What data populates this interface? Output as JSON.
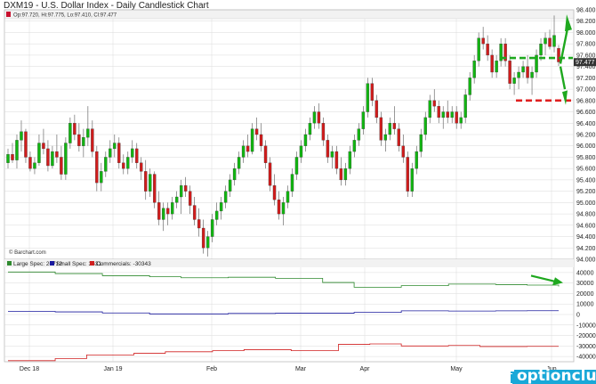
{
  "title": "DXM19 - U.S. Dollar Index - Daily Candlestick Chart",
  "ohlc_info": "Op:97.720, Hi:97.775, Lo:97.410, Cl:97.477",
  "credit": "© Barchart.com",
  "watermark": "optionclue.com",
  "colors": {
    "up": "#11b511",
    "down": "#d01c1c",
    "grid": "#dadada",
    "annotation": "#1ea81e",
    "support": "#e02020",
    "large_spec": "#2f8a2f",
    "small_spec": "#1a1a9e",
    "commercials": "#d02020",
    "watermark_bg": "#1aa8d8"
  },
  "chart_data": [
    {
      "type": "candlestick",
      "title": "DXM19 - U.S. Dollar Index - Daily Candlestick Chart",
      "y_axis_ticks": [
        "94.000",
        "94.200",
        "94.400",
        "94.600",
        "94.800",
        "95.000",
        "95.200",
        "95.400",
        "95.600",
        "95.800",
        "96.000",
        "96.200",
        "96.400",
        "96.600",
        "96.800",
        "97.000",
        "97.200",
        "97.400",
        "97.600",
        "97.800",
        "98.000",
        "98.200",
        "98.400"
      ],
      "ylim": [
        94.0,
        98.4
      ],
      "x_axis_labels": [
        "Dec 18",
        "Jan 19",
        "Feb",
        "Mar",
        "Apr",
        "May",
        "Jun"
      ],
      "last_price_label": "97.477",
      "annotations": [
        {
          "type": "dashed-line",
          "color": "green",
          "y": 97.55,
          "from": "May",
          "to": "Jun"
        },
        {
          "type": "dashed-line",
          "color": "red",
          "y": 96.8,
          "from": "May",
          "to": "Jun"
        },
        {
          "type": "arrow",
          "color": "green",
          "direction": "up"
        },
        {
          "type": "arrow",
          "color": "green",
          "direction": "down"
        }
      ],
      "candles": [
        [
          95.7,
          95.95,
          95.6,
          95.85
        ],
        [
          95.85,
          96.05,
          95.7,
          95.75
        ],
        [
          95.75,
          96.2,
          95.6,
          96.1
        ],
        [
          96.1,
          96.45,
          95.9,
          96.25
        ],
        [
          96.25,
          96.3,
          95.7,
          95.8
        ],
        [
          95.8,
          95.9,
          95.55,
          95.6
        ],
        [
          95.6,
          95.8,
          95.5,
          95.7
        ],
        [
          95.7,
          96.2,
          95.65,
          96.05
        ],
        [
          96.05,
          96.3,
          95.85,
          95.95
        ],
        [
          95.95,
          96.1,
          95.55,
          95.65
        ],
        [
          95.65,
          96.0,
          95.6,
          95.9
        ],
        [
          95.9,
          96.2,
          95.7,
          95.8
        ],
        [
          95.8,
          96.0,
          95.4,
          95.5
        ],
        [
          95.5,
          96.15,
          95.4,
          96.05
        ],
        [
          96.05,
          96.5,
          95.95,
          96.4
        ],
        [
          96.4,
          96.55,
          96.1,
          96.2
        ],
        [
          96.2,
          96.4,
          95.9,
          96.0
        ],
        [
          96.0,
          96.3,
          95.8,
          96.15
        ],
        [
          96.15,
          96.7,
          96.0,
          96.3
        ],
        [
          96.3,
          96.45,
          95.8,
          95.9
        ],
        [
          95.9,
          96.0,
          95.2,
          95.35
        ],
        [
          95.35,
          95.7,
          95.2,
          95.55
        ],
        [
          95.55,
          95.9,
          95.45,
          95.8
        ],
        [
          95.8,
          96.1,
          95.7,
          95.95
        ],
        [
          95.95,
          96.2,
          95.8,
          96.05
        ],
        [
          96.05,
          96.15,
          95.6,
          95.7
        ],
        [
          95.7,
          95.85,
          95.5,
          95.6
        ],
        [
          95.6,
          95.9,
          95.5,
          95.8
        ],
        [
          95.8,
          96.1,
          95.7,
          95.95
        ],
        [
          95.95,
          96.05,
          95.6,
          95.7
        ],
        [
          95.7,
          95.8,
          95.4,
          95.55
        ],
        [
          95.55,
          95.75,
          95.05,
          95.2
        ],
        [
          95.2,
          95.6,
          95.1,
          95.5
        ],
        [
          95.5,
          95.55,
          94.9,
          95.0
        ],
        [
          95.0,
          95.2,
          94.6,
          94.7
        ],
        [
          94.7,
          95.0,
          94.5,
          94.9
        ],
        [
          94.9,
          95.0,
          94.6,
          94.8
        ],
        [
          94.8,
          95.1,
          94.7,
          95.0
        ],
        [
          95.0,
          95.2,
          94.9,
          95.1
        ],
        [
          95.1,
          95.4,
          94.8,
          95.3
        ],
        [
          95.3,
          95.45,
          95.1,
          95.2
        ],
        [
          95.2,
          95.3,
          94.8,
          94.95
        ],
        [
          94.95,
          95.1,
          94.6,
          94.7
        ],
        [
          94.7,
          94.9,
          94.4,
          94.55
        ],
        [
          94.55,
          94.7,
          94.1,
          94.2
        ],
        [
          94.2,
          94.5,
          94.05,
          94.4
        ],
        [
          94.4,
          94.8,
          94.3,
          94.7
        ],
        [
          94.7,
          95.0,
          94.6,
          94.85
        ],
        [
          94.85,
          95.1,
          94.7,
          95.0
        ],
        [
          95.0,
          95.3,
          94.9,
          95.2
        ],
        [
          95.2,
          95.5,
          95.1,
          95.4
        ],
        [
          95.4,
          95.7,
          95.3,
          95.6
        ],
        [
          95.6,
          95.9,
          95.5,
          95.8
        ],
        [
          95.8,
          96.1,
          95.7,
          96.0
        ],
        [
          96.0,
          96.2,
          95.8,
          95.9
        ],
        [
          95.9,
          96.4,
          95.85,
          96.3
        ],
        [
          96.3,
          96.5,
          96.1,
          96.2
        ],
        [
          96.2,
          96.4,
          95.9,
          96.0
        ],
        [
          96.0,
          96.1,
          95.6,
          95.7
        ],
        [
          95.7,
          95.8,
          95.2,
          95.3
        ],
        [
          95.3,
          95.5,
          94.95,
          95.05
        ],
        [
          95.05,
          95.2,
          94.7,
          94.8
        ],
        [
          94.8,
          95.1,
          94.6,
          95.0
        ],
        [
          95.0,
          95.3,
          94.9,
          95.2
        ],
        [
          95.2,
          95.6,
          95.1,
          95.5
        ],
        [
          95.5,
          95.9,
          95.4,
          95.8
        ],
        [
          95.8,
          96.1,
          95.7,
          96.0
        ],
        [
          96.0,
          96.3,
          95.9,
          96.2
        ],
        [
          96.2,
          96.5,
          96.1,
          96.4
        ],
        [
          96.4,
          96.7,
          96.3,
          96.6
        ],
        [
          96.6,
          96.75,
          96.3,
          96.4
        ],
        [
          96.4,
          96.5,
          96.0,
          96.1
        ],
        [
          96.1,
          96.2,
          95.7,
          95.8
        ],
        [
          95.8,
          96.0,
          95.6,
          95.9
        ],
        [
          95.9,
          96.0,
          95.5,
          95.6
        ],
        [
          95.6,
          95.8,
          95.3,
          95.4
        ],
        [
          95.4,
          95.7,
          95.3,
          95.6
        ],
        [
          95.6,
          96.0,
          95.5,
          95.9
        ],
        [
          95.9,
          96.2,
          95.8,
          96.1
        ],
        [
          96.1,
          96.4,
          96.0,
          96.3
        ],
        [
          96.3,
          96.7,
          96.2,
          96.6
        ],
        [
          96.6,
          97.2,
          96.5,
          97.1
        ],
        [
          97.1,
          97.2,
          96.7,
          96.8
        ],
        [
          96.8,
          96.9,
          96.4,
          96.5
        ],
        [
          96.5,
          96.6,
          96.0,
          96.1
        ],
        [
          96.1,
          96.3,
          95.9,
          96.2
        ],
        [
          96.2,
          96.5,
          96.1,
          96.4
        ],
        [
          96.4,
          96.7,
          96.2,
          96.3
        ],
        [
          96.3,
          96.4,
          95.9,
          96.0
        ],
        [
          96.0,
          96.2,
          95.7,
          95.8
        ],
        [
          95.8,
          95.9,
          95.1,
          95.2
        ],
        [
          95.2,
          95.7,
          95.1,
          95.6
        ],
        [
          95.6,
          96.0,
          95.5,
          95.9
        ],
        [
          95.9,
          96.3,
          95.8,
          96.2
        ],
        [
          96.2,
          96.6,
          96.1,
          96.5
        ],
        [
          96.5,
          96.9,
          96.4,
          96.8
        ],
        [
          96.8,
          97.0,
          96.6,
          96.7
        ],
        [
          96.7,
          96.8,
          96.4,
          96.5
        ],
        [
          96.5,
          96.7,
          96.3,
          96.6
        ],
        [
          96.6,
          96.8,
          96.4,
          96.5
        ],
        [
          96.5,
          96.7,
          96.4,
          96.6
        ],
        [
          96.6,
          96.7,
          96.3,
          96.4
        ],
        [
          96.4,
          96.6,
          96.3,
          96.5
        ],
        [
          96.5,
          97.0,
          96.4,
          96.9
        ],
        [
          96.9,
          97.3,
          96.8,
          97.2
        ],
        [
          97.2,
          97.6,
          97.1,
          97.5
        ],
        [
          97.5,
          98.0,
          97.4,
          97.9
        ],
        [
          97.9,
          98.1,
          97.7,
          97.8
        ],
        [
          97.8,
          97.95,
          97.5,
          97.6
        ],
        [
          97.6,
          97.7,
          97.2,
          97.3
        ],
        [
          97.3,
          97.6,
          97.2,
          97.5
        ],
        [
          97.5,
          97.9,
          97.4,
          97.8
        ],
        [
          97.8,
          97.9,
          97.4,
          97.5
        ],
        [
          97.5,
          97.6,
          97.0,
          97.1
        ],
        [
          97.1,
          97.3,
          96.9,
          97.2
        ],
        [
          97.2,
          97.4,
          97.0,
          97.3
        ],
        [
          97.3,
          97.5,
          97.2,
          97.4
        ],
        [
          97.4,
          97.6,
          97.1,
          97.2
        ],
        [
          97.2,
          97.4,
          96.9,
          97.3
        ],
        [
          97.3,
          97.7,
          97.2,
          97.6
        ],
        [
          97.6,
          97.9,
          97.5,
          97.8
        ],
        [
          97.8,
          98.0,
          97.6,
          97.9
        ],
        [
          97.9,
          98.05,
          97.7,
          97.75
        ],
        [
          97.75,
          98.3,
          97.65,
          97.95
        ],
        [
          97.72,
          97.78,
          97.41,
          97.48
        ]
      ]
    },
    {
      "type": "line",
      "title": "",
      "legend": [
        "Large Spec: 26712",
        "Small Spec: 3631",
        "Commercials: -30343"
      ],
      "y_axis_ticks": [
        "40000",
        "30000",
        "20000",
        "10000",
        "0",
        "-10000",
        "-20000",
        "-30000",
        "-40000"
      ],
      "ylim": [
        -45000,
        45000
      ],
      "x_axis_labels": [
        "Dec 18",
        "Jan 19",
        "Feb",
        "Mar",
        "Apr",
        "May",
        "Jun"
      ],
      "series": [
        {
          "name": "Large Spec",
          "values": [
            40500,
            40500,
            40500,
            39000,
            39000,
            39000,
            37000,
            37000,
            37000,
            36000,
            36000,
            35000,
            35000,
            35000,
            35500,
            35500,
            35500,
            34500,
            34500,
            34500,
            30500,
            30500,
            26000,
            26000,
            26000,
            27500,
            27500,
            27500,
            29000,
            29000,
            29000,
            28500,
            28500,
            28000,
            28000,
            26712
          ]
        },
        {
          "name": "Small Spec",
          "values": [
            3000,
            3000,
            3000,
            2500,
            2500,
            2500,
            1500,
            1500,
            1500,
            600,
            600,
            600,
            600,
            600,
            1000,
            1000,
            1000,
            1200,
            1200,
            1200,
            1200,
            1200,
            2000,
            2000,
            2000,
            3500,
            3500,
            3500,
            3300,
            3300,
            3300,
            3500,
            3500,
            3631,
            3631,
            3631
          ]
        },
        {
          "name": "Commercials",
          "values": [
            -44000,
            -44000,
            -44000,
            -42000,
            -42000,
            -38500,
            -38500,
            -38500,
            -37000,
            -37000,
            -35500,
            -35500,
            -35500,
            -34500,
            -34500,
            -33500,
            -33500,
            -33500,
            -34500,
            -34500,
            -34500,
            -28500,
            -28500,
            -28000,
            -28000,
            -30000,
            -30000,
            -30000,
            -29500,
            -29500,
            -30500,
            -30500,
            -30500,
            -30343,
            -30343,
            -30343
          ]
        }
      ]
    }
  ]
}
